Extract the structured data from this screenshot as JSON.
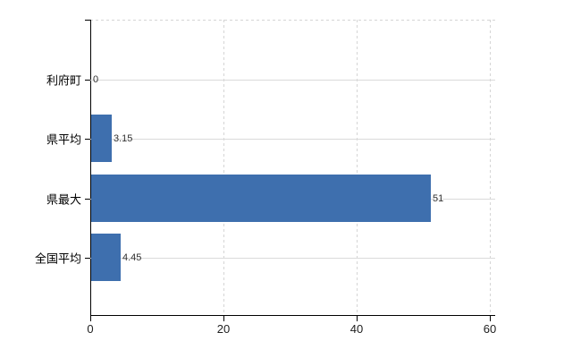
{
  "chart_data": {
    "type": "bar",
    "orientation": "horizontal",
    "title": "",
    "categories": [
      "利府町",
      "県平均",
      "県最大",
      "全国平均"
    ],
    "values": [
      0,
      3.15,
      51,
      4.45
    ],
    "value_labels": [
      "0",
      "3.15",
      "51",
      "4.45"
    ],
    "xlim": [
      0,
      60
    ],
    "x_ticks": [
      0,
      20,
      40,
      60
    ],
    "x_tick_labels": [
      "0",
      "20",
      "40",
      "60"
    ],
    "legend": "none",
    "grid": {
      "vertical": "dashed at x ticks",
      "horizontal": "solid at category centers",
      "top_border": "dashed"
    },
    "colors": {
      "bar": "#3e6fae",
      "axis": "#000000",
      "gridline": "#d8d8d8",
      "value_label": "#303030",
      "tick_label": "#202020",
      "category_label": "#000000",
      "background": "#ffffff"
    }
  }
}
